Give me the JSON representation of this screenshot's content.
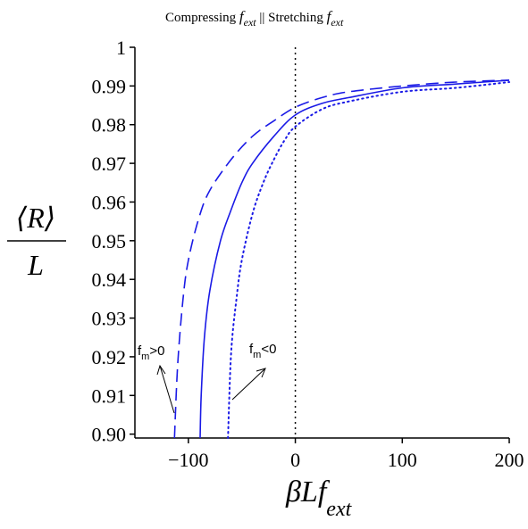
{
  "chart_data": {
    "type": "line",
    "title": {
      "left_text": "Compressing ",
      "left_f": "f",
      "left_sub": "ext",
      "middle": " || Stretching ",
      "right_f": "f",
      "right_sub": "ext"
    },
    "xlabel": {
      "main": "βLf",
      "sub": "ext"
    },
    "ylabel": {
      "numerator": "⟨R⟩",
      "denominator": "L"
    },
    "xlim": [
      -150,
      200
    ],
    "ylim": [
      0.899,
      1.0
    ],
    "xticks": [
      -100,
      0,
      100,
      200
    ],
    "xtick_labels": [
      "−100",
      "0",
      "100",
      "200"
    ],
    "yticks": [
      0.9,
      0.91,
      0.92,
      0.93,
      0.94,
      0.95,
      0.96,
      0.97,
      0.98,
      0.99,
      1.0
    ],
    "ytick_labels": [
      "0.90",
      "0.91",
      "0.92",
      "0.93",
      "0.94",
      "0.95",
      "0.96",
      "0.97",
      "0.98",
      "0.99",
      "1"
    ],
    "grid": false,
    "vline_x": 0,
    "series": [
      {
        "style": "dashed",
        "color": "#1a1ae6",
        "points": [
          [
            -113,
            0.899
          ],
          [
            -110,
            0.918
          ],
          [
            -105,
            0.935
          ],
          [
            -100,
            0.945
          ],
          [
            -90,
            0.956
          ],
          [
            -80,
            0.963
          ],
          [
            -60,
            0.971
          ],
          [
            -40,
            0.977
          ],
          [
            -20,
            0.981
          ],
          [
            0,
            0.9845
          ],
          [
            25,
            0.987
          ],
          [
            50,
            0.9885
          ],
          [
            100,
            0.99
          ],
          [
            150,
            0.991
          ],
          [
            200,
            0.9915
          ]
        ]
      },
      {
        "style": "solid",
        "color": "#1a1ae6",
        "points": [
          [
            -89,
            0.899
          ],
          [
            -88,
            0.91
          ],
          [
            -85,
            0.925
          ],
          [
            -80,
            0.937
          ],
          [
            -70,
            0.95
          ],
          [
            -60,
            0.958
          ],
          [
            -50,
            0.965
          ],
          [
            -40,
            0.97
          ],
          [
            -20,
            0.977
          ],
          [
            0,
            0.9825
          ],
          [
            25,
            0.9855
          ],
          [
            50,
            0.987
          ],
          [
            100,
            0.9895
          ],
          [
            150,
            0.9905
          ],
          [
            200,
            0.9915
          ]
        ]
      },
      {
        "style": "dotted",
        "color": "#1a1ae6",
        "points": [
          [
            -63,
            0.899
          ],
          [
            -60,
            0.921
          ],
          [
            -55,
            0.935
          ],
          [
            -50,
            0.945
          ],
          [
            -40,
            0.957
          ],
          [
            -30,
            0.965
          ],
          [
            -20,
            0.971
          ],
          [
            -10,
            0.976
          ],
          [
            0,
            0.9795
          ],
          [
            25,
            0.984
          ],
          [
            50,
            0.986
          ],
          [
            100,
            0.9885
          ],
          [
            150,
            0.9895
          ],
          [
            200,
            0.991
          ]
        ]
      }
    ],
    "annotations": [
      {
        "base": "f",
        "sub": "m",
        "rest": ">0"
      },
      {
        "base": "f",
        "sub": "m",
        "rest": "<0"
      }
    ]
  }
}
